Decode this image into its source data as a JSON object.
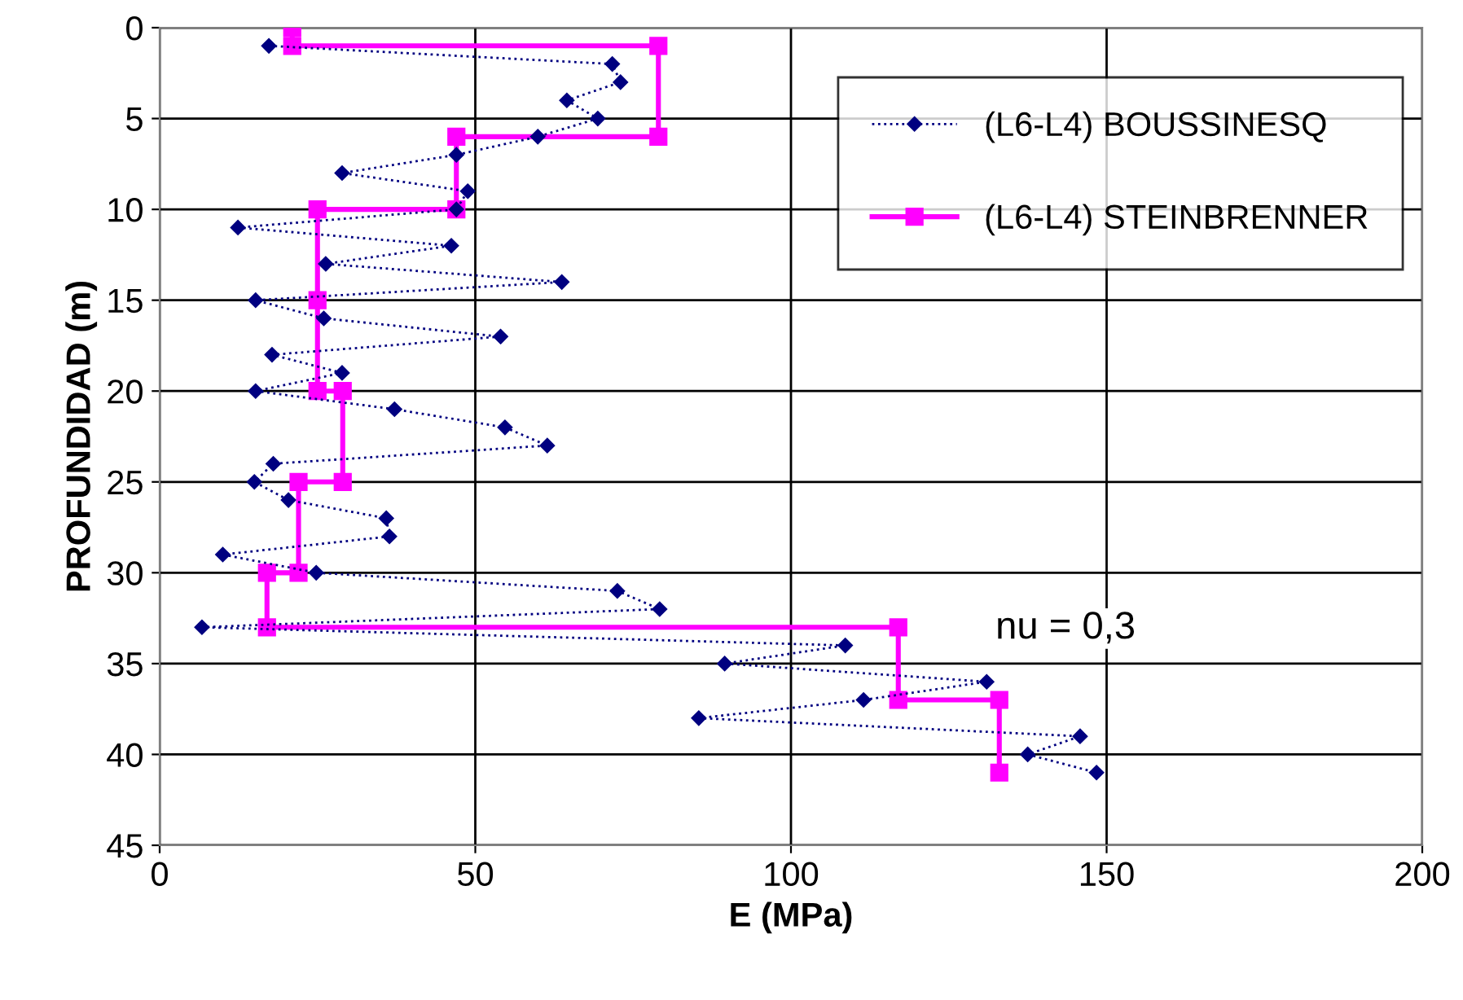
{
  "chart_data": {
    "type": "line",
    "xlabel": "E (MPa)",
    "ylabel": "PROFUNDIDAD (m)",
    "xlim": [
      0,
      200
    ],
    "xticks": [
      0,
      50,
      100,
      150,
      200
    ],
    "ylim": [
      45,
      0
    ],
    "yticks": [
      0,
      5,
      10,
      15,
      20,
      25,
      30,
      35,
      40,
      45
    ],
    "grid": true,
    "legend": "top right",
    "annotations": [
      "nu = 0,3"
    ],
    "series": [
      {
        "name": "(L6-L4) BOUSSINESQ",
        "color": "#000080",
        "marker": "diamond",
        "line_style": "dotted",
        "x": [
          17.3,
          71.7,
          73,
          64.5,
          69.4,
          59.9,
          47,
          28.9,
          48.8,
          47,
          12.4,
          46.2,
          26.3,
          63.7,
          15.2,
          26,
          54,
          17.8,
          28.9,
          15.2,
          37.2,
          54.7,
          61.4,
          18,
          15,
          20.4,
          35.9,
          36.4,
          10,
          24.8,
          72.5,
          79.2,
          6.7,
          108.6,
          89.5,
          131,
          111.5,
          85.4,
          145.8,
          137.5,
          148.4
        ],
        "values": [
          1,
          2,
          3,
          4,
          5,
          6,
          7,
          8,
          9,
          10,
          11,
          12,
          13,
          14,
          15,
          16,
          17,
          18,
          19,
          20,
          21,
          22,
          23,
          24,
          25,
          26,
          27,
          28,
          29,
          30,
          31,
          32,
          33,
          34,
          35,
          36,
          37,
          38,
          39,
          40,
          41
        ]
      },
      {
        "name": "(L6-L4) STEINBRENNER",
        "color": "#ff00ff",
        "marker": "square",
        "line_style": "solid",
        "x": [
          21,
          21,
          79,
          79,
          47,
          47,
          25,
          25,
          25,
          29,
          29,
          22,
          22,
          17,
          17,
          117,
          117,
          133,
          133
        ],
        "values": [
          0,
          1,
          1,
          6,
          6,
          10,
          10,
          15,
          20,
          20,
          25,
          25,
          30,
          30,
          33,
          33,
          37,
          37,
          41
        ]
      }
    ]
  }
}
